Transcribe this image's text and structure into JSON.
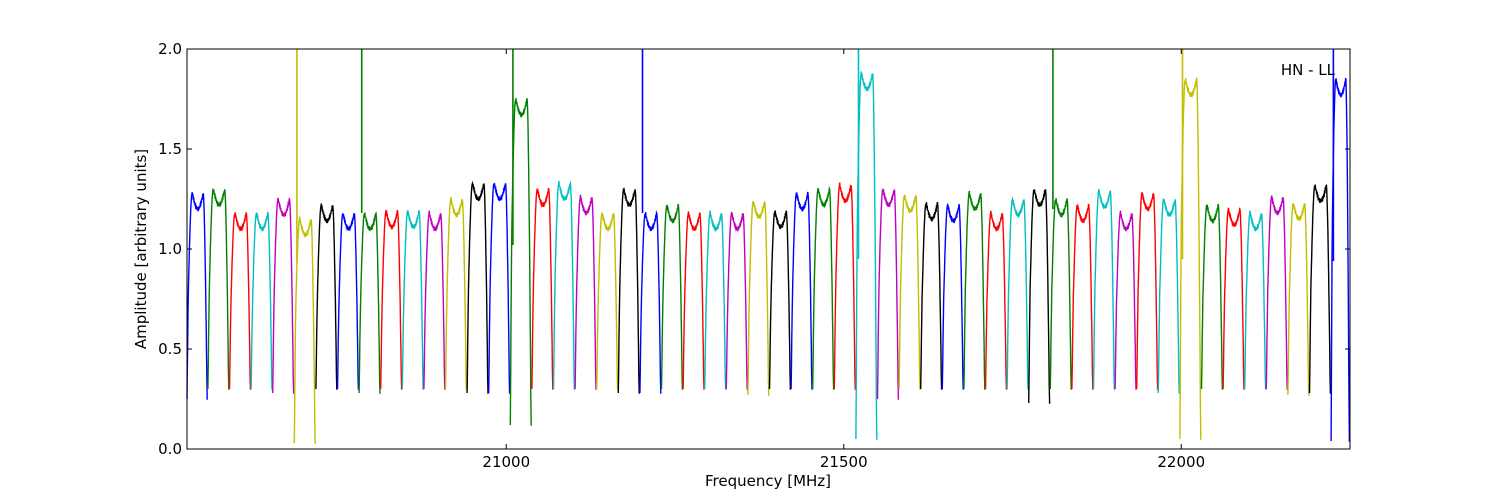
{
  "chart_data": {
    "type": "line",
    "title": "",
    "annotation": "HN - LL",
    "xlabel": "Frequency [MHz]",
    "ylabel": "Amplitude [arbitrary units]",
    "xlim": [
      20527,
      22250
    ],
    "ylim": [
      0.0,
      2.0
    ],
    "xticks": [
      21000,
      21500,
      22000
    ],
    "xtick_labels": [
      "21000",
      "21500",
      "22000"
    ],
    "yticks": [
      0.0,
      0.5,
      1.0,
      1.5,
      2.0
    ],
    "ytick_labels": [
      "0.0",
      "0.5",
      "1.0",
      "1.5",
      "2.0"
    ],
    "grid": false,
    "legend": "none",
    "colors": [
      "#0000ff",
      "#008000",
      "#ff0000",
      "#00bfbf",
      "#bf00bf",
      "#bfbf00",
      "#000000"
    ],
    "band_width_mhz": 32,
    "series": [
      {
        "x_start": 20527,
        "x_end": 20558,
        "color": "#0000ff",
        "peak": 1.28,
        "floor": 0.25
      },
      {
        "x_start": 20558,
        "x_end": 20590,
        "color": "#008000",
        "peak": 1.3,
        "floor": 0.3
      },
      {
        "x_start": 20590,
        "x_end": 20622,
        "color": "#ff0000",
        "peak": 1.18,
        "floor": 0.3
      },
      {
        "x_start": 20622,
        "x_end": 20654,
        "color": "#00bfbf",
        "peak": 1.18,
        "floor": 0.3
      },
      {
        "x_start": 20654,
        "x_end": 20686,
        "color": "#bf00bf",
        "peak": 1.25,
        "floor": 0.28
      },
      {
        "x_start": 20686,
        "x_end": 20718,
        "color": "#bfbf00",
        "peak": 1.15,
        "floor": 0.03,
        "spike": 2.0
      },
      {
        "x_start": 20718,
        "x_end": 20750,
        "color": "#000000",
        "peak": 1.22,
        "floor": 0.3
      },
      {
        "x_start": 20750,
        "x_end": 20782,
        "color": "#0000ff",
        "peak": 1.18,
        "floor": 0.3
      },
      {
        "x_start": 20782,
        "x_end": 20814,
        "color": "#008000",
        "peak": 1.18,
        "floor": 0.28,
        "spike": 2.0
      },
      {
        "x_start": 20814,
        "x_end": 20846,
        "color": "#ff0000",
        "peak": 1.19,
        "floor": 0.3
      },
      {
        "x_start": 20846,
        "x_end": 20878,
        "color": "#00bfbf",
        "peak": 1.19,
        "floor": 0.3
      },
      {
        "x_start": 20878,
        "x_end": 20910,
        "color": "#bf00bf",
        "peak": 1.18,
        "floor": 0.3
      },
      {
        "x_start": 20910,
        "x_end": 20942,
        "color": "#bfbf00",
        "peak": 1.25,
        "floor": 0.3
      },
      {
        "x_start": 20942,
        "x_end": 20974,
        "color": "#000000",
        "peak": 1.33,
        "floor": 0.28
      },
      {
        "x_start": 20974,
        "x_end": 21006,
        "color": "#0000ff",
        "peak": 1.33,
        "floor": 0.28
      },
      {
        "x_start": 21006,
        "x_end": 21038,
        "color": "#008000",
        "peak": 1.75,
        "floor": 0.12,
        "spike": 2.0
      },
      {
        "x_start": 21038,
        "x_end": 21070,
        "color": "#ff0000",
        "peak": 1.3,
        "floor": 0.3
      },
      {
        "x_start": 21070,
        "x_end": 21102,
        "color": "#00bfbf",
        "peak": 1.33,
        "floor": 0.3
      },
      {
        "x_start": 21102,
        "x_end": 21134,
        "color": "#bf00bf",
        "peak": 1.26,
        "floor": 0.3
      },
      {
        "x_start": 21134,
        "x_end": 21166,
        "color": "#bfbf00",
        "peak": 1.18,
        "floor": 0.3
      },
      {
        "x_start": 21166,
        "x_end": 21198,
        "color": "#000000",
        "peak": 1.3,
        "floor": 0.28
      },
      {
        "x_start": 21198,
        "x_end": 21230,
        "color": "#0000ff",
        "peak": 1.18,
        "floor": 0.28,
        "spike": 2.0
      },
      {
        "x_start": 21230,
        "x_end": 21262,
        "color": "#008000",
        "peak": 1.22,
        "floor": 0.3
      },
      {
        "x_start": 21262,
        "x_end": 21294,
        "color": "#ff0000",
        "peak": 1.18,
        "floor": 0.3
      },
      {
        "x_start": 21294,
        "x_end": 21326,
        "color": "#00bfbf",
        "peak": 1.18,
        "floor": 0.3
      },
      {
        "x_start": 21326,
        "x_end": 21358,
        "color": "#bf00bf",
        "peak": 1.18,
        "floor": 0.3
      },
      {
        "x_start": 21358,
        "x_end": 21390,
        "color": "#bfbf00",
        "peak": 1.24,
        "floor": 0.27
      },
      {
        "x_start": 21390,
        "x_end": 21422,
        "color": "#000000",
        "peak": 1.19,
        "floor": 0.3
      },
      {
        "x_start": 21422,
        "x_end": 21454,
        "color": "#0000ff",
        "peak": 1.28,
        "floor": 0.3
      },
      {
        "x_start": 21454,
        "x_end": 21486,
        "color": "#008000",
        "peak": 1.3,
        "floor": 0.3
      },
      {
        "x_start": 21486,
        "x_end": 21518,
        "color": "#ff0000",
        "peak": 1.32,
        "floor": 0.3
      },
      {
        "x_start": 21518,
        "x_end": 21550,
        "color": "#00bfbf",
        "peak": 1.88,
        "floor": 0.05,
        "spike": 2.0
      },
      {
        "x_start": 21550,
        "x_end": 21582,
        "color": "#bf00bf",
        "peak": 1.3,
        "floor": 0.25
      },
      {
        "x_start": 21582,
        "x_end": 21614,
        "color": "#bfbf00",
        "peak": 1.27,
        "floor": 0.3
      },
      {
        "x_start": 21614,
        "x_end": 21646,
        "color": "#000000",
        "peak": 1.23,
        "floor": 0.3
      },
      {
        "x_start": 21646,
        "x_end": 21678,
        "color": "#0000ff",
        "peak": 1.22,
        "floor": 0.3
      },
      {
        "x_start": 21678,
        "x_end": 21710,
        "color": "#008000",
        "peak": 1.28,
        "floor": 0.3
      },
      {
        "x_start": 21710,
        "x_end": 21742,
        "color": "#ff0000",
        "peak": 1.18,
        "floor": 0.3
      },
      {
        "x_start": 21742,
        "x_end": 21774,
        "color": "#00bfbf",
        "peak": 1.25,
        "floor": 0.3
      },
      {
        "x_start": 21774,
        "x_end": 21806,
        "color": "#000000",
        "peak": 1.3,
        "floor": 0.23
      },
      {
        "x_start": 21806,
        "x_end": 21838,
        "color": "#008000",
        "peak": 1.25,
        "floor": 0.3,
        "spike": 2.0
      },
      {
        "x_start": 21838,
        "x_end": 21870,
        "color": "#ff0000",
        "peak": 1.22,
        "floor": 0.3
      },
      {
        "x_start": 21870,
        "x_end": 21902,
        "color": "#00bfbf",
        "peak": 1.29,
        "floor": 0.3
      },
      {
        "x_start": 21902,
        "x_end": 21934,
        "color": "#bf00bf",
        "peak": 1.18,
        "floor": 0.3
      },
      {
        "x_start": 21934,
        "x_end": 21966,
        "color": "#ff0000",
        "peak": 1.28,
        "floor": 0.3
      },
      {
        "x_start": 21966,
        "x_end": 21998,
        "color": "#00bfbf",
        "peak": 1.25,
        "floor": 0.28
      },
      {
        "x_start": 21998,
        "x_end": 22030,
        "color": "#bfbf00",
        "peak": 1.85,
        "floor": 0.05,
        "spike": 2.0
      },
      {
        "x_start": 22030,
        "x_end": 22062,
        "color": "#008000",
        "peak": 1.22,
        "floor": 0.3
      },
      {
        "x_start": 22062,
        "x_end": 22094,
        "color": "#ff0000",
        "peak": 1.2,
        "floor": 0.3
      },
      {
        "x_start": 22094,
        "x_end": 22126,
        "color": "#00bfbf",
        "peak": 1.18,
        "floor": 0.3
      },
      {
        "x_start": 22126,
        "x_end": 22158,
        "color": "#bf00bf",
        "peak": 1.26,
        "floor": 0.3
      },
      {
        "x_start": 22158,
        "x_end": 22190,
        "color": "#bfbf00",
        "peak": 1.23,
        "floor": 0.27
      },
      {
        "x_start": 22190,
        "x_end": 22222,
        "color": "#000000",
        "peak": 1.32,
        "floor": 0.28
      },
      {
        "x_start": 22222,
        "x_end": 22250,
        "color": "#0000ff",
        "peak": 1.85,
        "floor": 0.04,
        "spike": 2.0
      }
    ]
  }
}
